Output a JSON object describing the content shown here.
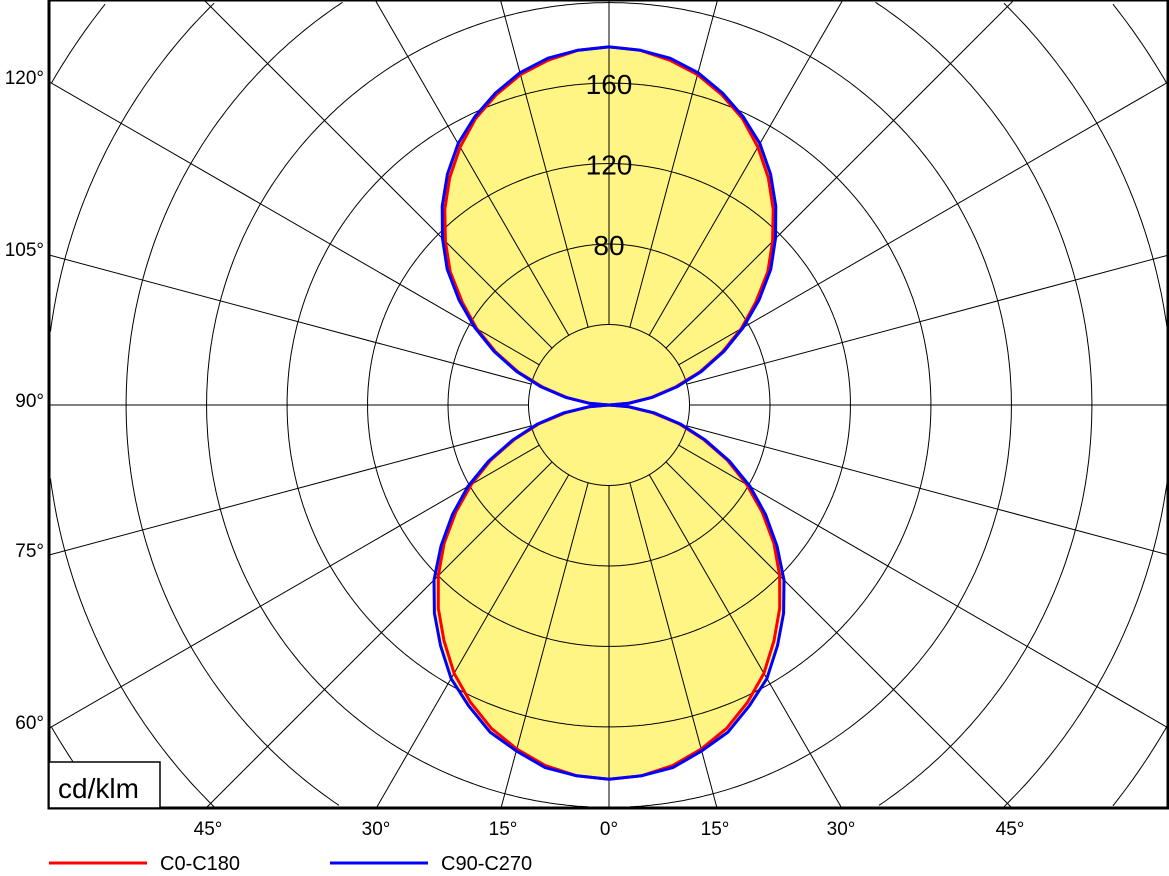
{
  "chart_data": {
    "type": "polar-line",
    "unit_label": "cd/klm",
    "radial_ticks": [
      40,
      80,
      120,
      160
    ],
    "radial_tick_labels": [
      "80",
      "120",
      "160"
    ],
    "angle_labels_left": [
      "120°",
      "105°",
      "90°",
      "75°",
      "60°"
    ],
    "angle_labels_bottom": [
      "45°",
      "30°",
      "15°",
      "0°",
      "15°",
      "30°",
      "45°"
    ],
    "grid": true,
    "fill_color": "#FFF584",
    "legend_position": "bottom",
    "gamma": [
      0,
      5,
      10,
      15,
      20,
      25,
      30,
      35,
      40,
      45,
      50,
      55,
      60,
      65,
      70,
      75,
      80,
      85,
      90,
      95,
      100,
      105,
      110,
      115,
      120,
      125,
      130,
      135,
      140,
      145,
      150,
      155,
      160,
      165,
      170,
      175,
      180
    ],
    "series": [
      {
        "name": "C0-C180",
        "color": "#FF0000",
        "values": [
          186,
          185,
          182,
          177,
          171,
          163,
          154,
          143,
          132,
          120,
          107,
          93,
          79,
          65,
          50,
          36,
          22,
          10,
          0,
          10,
          21,
          34,
          48,
          62,
          76,
          89,
          103,
          115,
          127,
          138,
          148,
          157,
          164,
          170,
          174,
          177,
          178
        ]
      },
      {
        "name": "C90-C270",
        "color": "#0000FF",
        "values": [
          186,
          185,
          183,
          178,
          173,
          165,
          157,
          146,
          135,
          123,
          109,
          95,
          81,
          66,
          51,
          37,
          23,
          10,
          0,
          10,
          22,
          35,
          49,
          63,
          77,
          91,
          105,
          117,
          129,
          140,
          150,
          158,
          165,
          171,
          175,
          177,
          178
        ]
      }
    ]
  }
}
